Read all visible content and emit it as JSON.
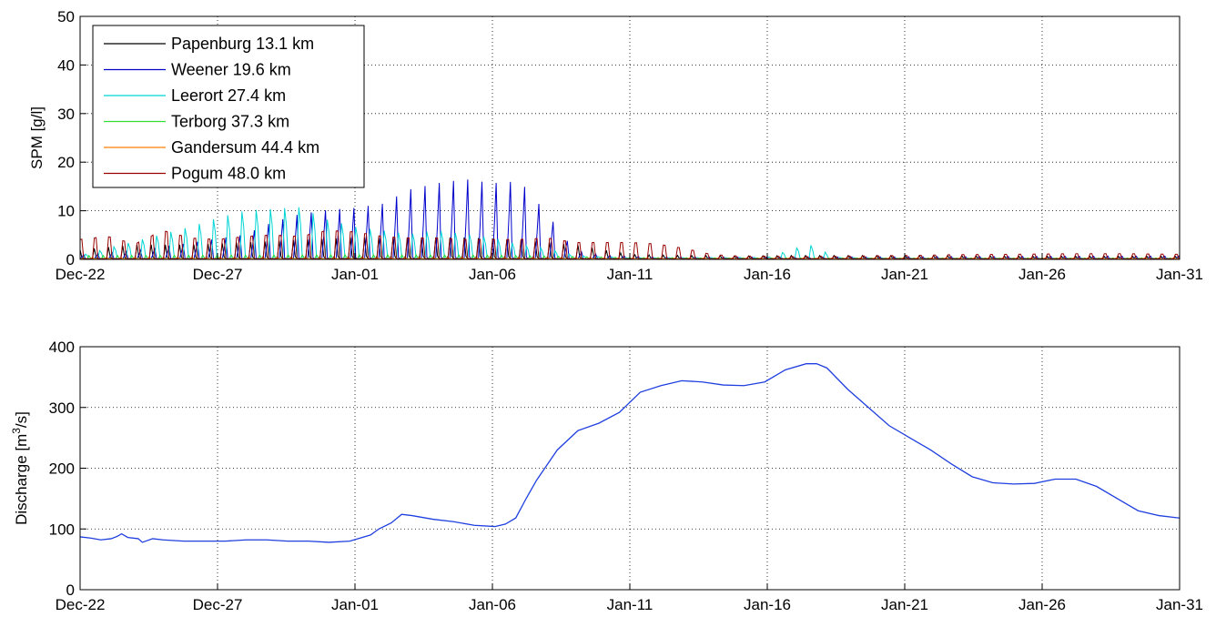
{
  "chart_data": [
    {
      "type": "line",
      "ylabel": "SPM [g/l]",
      "xlim": [
        "Dec-22",
        "Jan-31"
      ],
      "ylim": [
        0,
        50
      ],
      "yticks": [
        0,
        10,
        20,
        30,
        40,
        50
      ],
      "xtick_labels": [
        "Dec-22",
        "Dec-27",
        "Jan-01",
        "Jan-06",
        "Jan-11",
        "Jan-16",
        "Jan-21",
        "Jan-26",
        "Jan-31"
      ],
      "grid": true,
      "legend": "top-left",
      "series": [
        {
          "name": "Papenburg 13.1 km",
          "color": "#000000",
          "peaks": [
            [
              0.0,
              2.0
            ],
            [
              2.0,
              3.0
            ],
            [
              4.0,
              3.0
            ],
            [
              6.0,
              3.5
            ],
            [
              8.0,
              4.0
            ],
            [
              10.0,
              4.5
            ],
            [
              12.0,
              4.5
            ],
            [
              14.0,
              4.5
            ],
            [
              16.0,
              4.0
            ],
            [
              18.0,
              3.0
            ],
            [
              19.0,
              2.0
            ],
            [
              20.0,
              1.0
            ],
            [
              22.0,
              0.8
            ],
            [
              24.0,
              0.7
            ],
            [
              26.0,
              0.8
            ],
            [
              28.0,
              0.8
            ],
            [
              30.0,
              0.8
            ],
            [
              32.0,
              0.7
            ],
            [
              34.0,
              0.6
            ],
            [
              36.0,
              0.6
            ],
            [
              38.0,
              0.6
            ],
            [
              40.0,
              0.6
            ]
          ]
        },
        {
          "name": "Weener 19.6 km",
          "color": "#0000cc",
          "peaks": [
            [
              0.0,
              1.0
            ],
            [
              2.0,
              2.0
            ],
            [
              4.0,
              4.0
            ],
            [
              6.0,
              6.0
            ],
            [
              7.0,
              9.0
            ],
            [
              8.0,
              11.0
            ],
            [
              9.0,
              12.0
            ],
            [
              10.0,
              12.5
            ],
            [
              11.0,
              13.5
            ],
            [
              12.0,
              17.0
            ],
            [
              13.0,
              18.5
            ],
            [
              14.0,
              19.5
            ],
            [
              15.0,
              18.5
            ],
            [
              16.0,
              19.0
            ],
            [
              17.0,
              11.0
            ],
            [
              18.0,
              2.0
            ],
            [
              19.0,
              1.0
            ],
            [
              21.0,
              0.5
            ],
            [
              25.0,
              0.5
            ],
            [
              30.0,
              0.6
            ],
            [
              35.0,
              0.7
            ],
            [
              40.0,
              0.8
            ]
          ]
        },
        {
          "name": "Leerort 27.4 km",
          "color": "#00d5d5",
          "peaks": [
            [
              0.0,
              1.0
            ],
            [
              2.0,
              5.0
            ],
            [
              4.0,
              9.0
            ],
            [
              5.0,
              11.5
            ],
            [
              6.0,
              13.5
            ],
            [
              7.0,
              14.0
            ],
            [
              8.0,
              14.5
            ],
            [
              9.0,
              11.0
            ],
            [
              10.0,
              9.0
            ],
            [
              11.0,
              8.0
            ],
            [
              12.0,
              7.0
            ],
            [
              13.0,
              8.0
            ],
            [
              14.0,
              7.0
            ],
            [
              15.0,
              6.0
            ],
            [
              16.0,
              4.0
            ],
            [
              17.0,
              3.0
            ],
            [
              18.0,
              1.0
            ],
            [
              20.0,
              0.4
            ],
            [
              25.0,
              0.5
            ],
            [
              26.5,
              4.2
            ],
            [
              27.5,
              0.5
            ],
            [
              30.0,
              0.3
            ],
            [
              35.0,
              0.3
            ],
            [
              40.0,
              0.3
            ]
          ]
        },
        {
          "name": "Terborg 37.3 km",
          "color": "#33dd33",
          "peaks": [
            [
              0.0,
              0.8
            ],
            [
              5.0,
              0.9
            ],
            [
              10.0,
              1.0
            ],
            [
              15.0,
              0.9
            ],
            [
              20.0,
              0.4
            ],
            [
              25.0,
              0.3
            ],
            [
              30.0,
              0.3
            ],
            [
              35.0,
              0.3
            ],
            [
              40.0,
              0.3
            ]
          ]
        },
        {
          "name": "Gandersum 44.4 km",
          "color": "#ff7f00",
          "peaks": [
            [
              0.0,
              0.4
            ],
            [
              5.0,
              0.4
            ],
            [
              10.0,
              0.4
            ],
            [
              15.0,
              0.4
            ],
            [
              20.0,
              0.3
            ],
            [
              25.0,
              0.3
            ],
            [
              30.0,
              0.3
            ],
            [
              35.0,
              0.3
            ],
            [
              40.0,
              0.3
            ]
          ]
        },
        {
          "name": "Pogum 48.0 km",
          "color": "#990000",
          "peaks": [
            [
              0.0,
              6.5
            ],
            [
              1.0,
              7.5
            ],
            [
              2.0,
              5.0
            ],
            [
              3.0,
              9.5
            ],
            [
              4.0,
              7.0
            ],
            [
              5.0,
              6.5
            ],
            [
              6.0,
              7.5
            ],
            [
              7.0,
              8.0
            ],
            [
              8.0,
              7.5
            ],
            [
              9.0,
              9.5
            ],
            [
              10.0,
              9.0
            ],
            [
              11.0,
              7.5
            ],
            [
              12.0,
              7.0
            ],
            [
              13.0,
              7.0
            ],
            [
              14.0,
              6.5
            ],
            [
              15.0,
              6.5
            ],
            [
              16.0,
              6.5
            ],
            [
              17.0,
              7.0
            ],
            [
              18.0,
              5.5
            ],
            [
              19.0,
              5.5
            ],
            [
              20.0,
              5.5
            ],
            [
              21.0,
              5.0
            ],
            [
              22.0,
              3.5
            ],
            [
              23.0,
              1.5
            ],
            [
              24.0,
              1.0
            ],
            [
              25.0,
              1.0
            ],
            [
              26.0,
              0.8
            ],
            [
              28.0,
              1.0
            ],
            [
              30.0,
              1.2
            ],
            [
              32.0,
              1.5
            ],
            [
              34.0,
              1.6
            ],
            [
              36.0,
              1.8
            ],
            [
              38.0,
              1.8
            ],
            [
              40.0,
              1.6
            ]
          ]
        }
      ]
    },
    {
      "type": "line",
      "ylabel": "Discharge [m",
      "ylabel_sup": "3",
      "ylabel_end": "/s]",
      "xlim": [
        "Dec-22",
        "Jan-31"
      ],
      "ylim": [
        0,
        400
      ],
      "yticks": [
        0,
        100,
        200,
        300,
        400
      ],
      "xtick_labels": [
        "Dec-22",
        "Dec-27",
        "Jan-01",
        "Jan-06",
        "Jan-11",
        "Jan-16",
        "Jan-21",
        "Jan-26",
        "Jan-31"
      ],
      "grid": true,
      "series": [
        {
          "color": "#1f3fdf",
          "points": [
            [
              0.0,
              87
            ],
            [
              0.5,
              85
            ],
            [
              1.0,
              82
            ],
            [
              1.5,
              84
            ],
            [
              1.8,
              88
            ],
            [
              2.0,
              92
            ],
            [
              2.3,
              86
            ],
            [
              2.8,
              84
            ],
            [
              3.0,
              78
            ],
            [
              3.5,
              84
            ],
            [
              4.0,
              82
            ],
            [
              5.0,
              80
            ],
            [
              6.0,
              80
            ],
            [
              7.0,
              80
            ],
            [
              8.0,
              82
            ],
            [
              9.0,
              82
            ],
            [
              10.0,
              80
            ],
            [
              11.0,
              80
            ],
            [
              12.0,
              78
            ],
            [
              13.0,
              80
            ],
            [
              14.0,
              90
            ],
            [
              14.4,
              100
            ],
            [
              15.0,
              110
            ],
            [
              15.5,
              124
            ],
            [
              16.0,
              122
            ],
            [
              17.0,
              116
            ],
            [
              18.0,
              112
            ],
            [
              19.0,
              106
            ],
            [
              20.0,
              104
            ],
            [
              20.5,
              108
            ],
            [
              21.0,
              118
            ],
            [
              21.5,
              150
            ],
            [
              22.0,
              180
            ],
            [
              23.0,
              230
            ],
            [
              24.0,
              262
            ],
            [
              25.0,
              274
            ],
            [
              26.0,
              292
            ],
            [
              27.0,
              325
            ],
            [
              28.0,
              336
            ],
            [
              29.0,
              344
            ],
            [
              30.0,
              342
            ],
            [
              31.0,
              337
            ],
            [
              32.0,
              336
            ],
            [
              33.0,
              342
            ],
            [
              34.0,
              362
            ],
            [
              35.0,
              372
            ],
            [
              35.5,
              372
            ],
            [
              36.0,
              365
            ],
            [
              37.0,
              330
            ],
            [
              38.0,
              300
            ],
            [
              39.0,
              270
            ],
            [
              40.0,
              250
            ],
            [
              41.0,
              230
            ],
            [
              42.0,
              207
            ],
            [
              43.0,
              186
            ],
            [
              44.0,
              176
            ],
            [
              45.0,
              174
            ],
            [
              46.0,
              175
            ],
            [
              47.0,
              182
            ],
            [
              48.0,
              182
            ],
            [
              49.0,
              170
            ],
            [
              50.0,
              150
            ],
            [
              51.0,
              130
            ],
            [
              52.0,
              122
            ],
            [
              53.0,
              118
            ]
          ]
        }
      ]
    }
  ]
}
